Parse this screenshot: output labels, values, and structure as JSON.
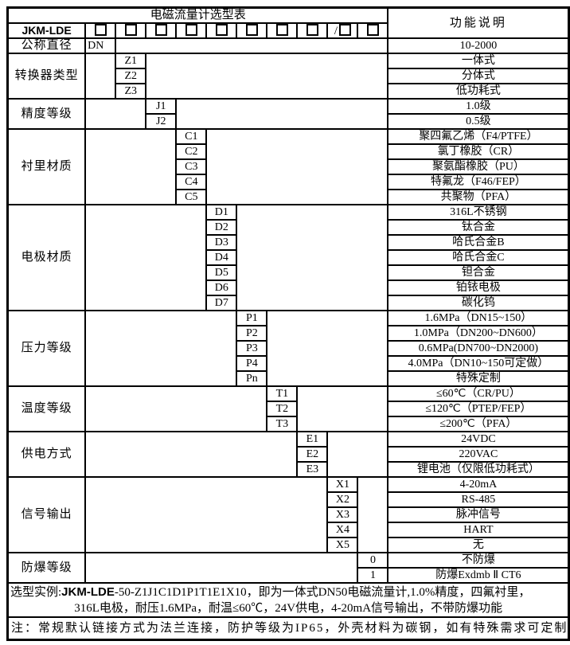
{
  "header": {
    "title": "电磁流量计选型表",
    "function_col": "功能说明",
    "model_prefix": "JKM-LDE",
    "checkbox_count": 10,
    "slash_before_index": 8,
    "slash_char": "/"
  },
  "groups": [
    {
      "category": "公称直径",
      "col": 0,
      "rows": [
        {
          "code": "DN",
          "desc": "10-2000"
        }
      ]
    },
    {
      "category": "转换器类型",
      "col": 1,
      "rows": [
        {
          "code": "Z1",
          "desc": "一体式"
        },
        {
          "code": "Z2",
          "desc": "分体式"
        },
        {
          "code": "Z3",
          "desc": "低功耗式"
        }
      ]
    },
    {
      "category": "精度等级",
      "col": 2,
      "rows": [
        {
          "code": "J1",
          "desc": "1.0级"
        },
        {
          "code": "J2",
          "desc": "0.5级"
        }
      ]
    },
    {
      "category": "衬里材质",
      "col": 3,
      "rows": [
        {
          "code": "C1",
          "desc": "聚四氟乙烯（F4/PTFE）"
        },
        {
          "code": "C2",
          "desc": "氯丁橡胶（CR）"
        },
        {
          "code": "C3",
          "desc": "聚氨酯橡胶（PU）"
        },
        {
          "code": "C4",
          "desc": "特氟龙（F46/FEP）"
        },
        {
          "code": "C5",
          "desc": "共聚物（PFA）"
        }
      ]
    },
    {
      "category": "电极材质",
      "col": 4,
      "rows": [
        {
          "code": "D1",
          "desc": "316L不锈钢"
        },
        {
          "code": "D2",
          "desc": "钛合金"
        },
        {
          "code": "D3",
          "desc": "哈氏合金B"
        },
        {
          "code": "D4",
          "desc": "哈氏合金C"
        },
        {
          "code": "D5",
          "desc": "钽合金"
        },
        {
          "code": "D6",
          "desc": "铂铱电极"
        },
        {
          "code": "D7",
          "desc": "碳化钨"
        }
      ]
    },
    {
      "category": "压力等级",
      "col": 5,
      "rows": [
        {
          "code": "P1",
          "desc": "1.6MPa（DN15~150）"
        },
        {
          "code": "P2",
          "desc": "1.0MPa（DN200~DN600）"
        },
        {
          "code": "P3",
          "desc": "0.6MPa(DN700~DN2000)"
        },
        {
          "code": "P4",
          "desc": "4.0MPa（DN10~150可定做）"
        },
        {
          "code": "Pn",
          "desc": "特殊定制"
        }
      ]
    },
    {
      "category": "温度等级",
      "col": 6,
      "rows": [
        {
          "code": "T1",
          "desc": "≤60℃（CR/PU）"
        },
        {
          "code": "T2",
          "desc": "≤120℃（PTEP/FEP）"
        },
        {
          "code": "T3",
          "desc": "≤200℃（PFA）"
        }
      ]
    },
    {
      "category": "供电方式",
      "col": 7,
      "rows": [
        {
          "code": "E1",
          "desc": "24VDC"
        },
        {
          "code": "E2",
          "desc": "220VAC"
        },
        {
          "code": "E3",
          "desc": "锂电池（仅限低功耗式）"
        }
      ]
    },
    {
      "category": "信号输出",
      "col": 8,
      "rows": [
        {
          "code": "X1",
          "desc": "4-20mA"
        },
        {
          "code": "X2",
          "desc": "RS-485"
        },
        {
          "code": "X3",
          "desc": "脉冲信号"
        },
        {
          "code": "X4",
          "desc": "HART"
        },
        {
          "code": "X5",
          "desc": "无"
        }
      ]
    },
    {
      "category": "防爆等级",
      "col": 9,
      "rows": [
        {
          "code": "0",
          "desc": "不防爆"
        },
        {
          "code": "1",
          "desc": "防爆Exdmb Ⅱ CT6"
        }
      ]
    }
  ],
  "footer": {
    "example": {
      "label": "选型实例:",
      "model": "JKM-LDE",
      "line1_rest": "-50-Z1J1C1D1P1T1E1X10，即为一体式DN50电磁流量计,1.0%精度，四氟衬里，",
      "line2": "316L电极，耐压1.6MPa，耐温≤60℃，24V供电，4-20mA信号输出，不带防爆功能"
    },
    "note": "注：常规默认链接方式为法兰连接，防护等级为IP65，外壳材料为碳钢，如有特殊需求可定制"
  },
  "colors": {
    "border": "#000000",
    "background": "#ffffff",
    "text": "#000000"
  }
}
